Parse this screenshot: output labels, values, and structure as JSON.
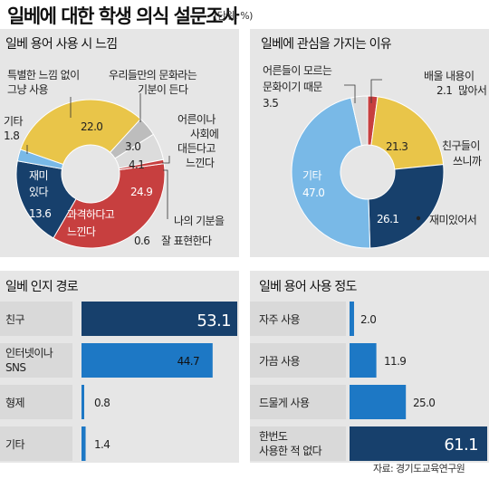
{
  "header": {
    "title": "일베에 대한 학생 의식 설문조사",
    "unit": "(단위: %)"
  },
  "source": "자료: 경기도교육연구원",
  "colors": {
    "red": "#c73f3f",
    "yellow": "#e9c549",
    "navy": "#17406c",
    "skyblue": "#79b9e7",
    "gray": "#bdbdbd",
    "lightgray": "#dcdcdc",
    "panel": "#e6e6e6",
    "barblue": "#1d78c5",
    "barlabel": "#d9d9d9"
  },
  "chart_data": [
    {
      "type": "pie",
      "title": "일베 용어 사용 시 느낌",
      "slices": [
        {
          "label": "과격하다고 느낀다",
          "value": 24.9
        },
        {
          "label": "재미 있다",
          "value": 13.6
        },
        {
          "label": "기타",
          "value": 1.8
        },
        {
          "label": "특별한 느낌 없이 그냥 사용",
          "value": 22.0
        },
        {
          "label": "우리들만의 문화라는 기분이 든다",
          "value": 3.0
        },
        {
          "label": "어른이나 사회에 대든다고 느낀다",
          "value": 4.1
        },
        {
          "label": "나의 기분을 잘 표현한다",
          "value": 0.6
        }
      ]
    },
    {
      "type": "pie",
      "title": "일베에 관심을 가지는 이유",
      "slices": [
        {
          "label": "배울 내용이 많아서",
          "value": 2.1
        },
        {
          "label": "친구들이 쓰니까",
          "value": 21.3
        },
        {
          "label": "재미있어서",
          "value": 26.1
        },
        {
          "label": "기타",
          "value": 47.0
        },
        {
          "label": "어른들이 모르는 문화이기 때문",
          "value": 3.5
        }
      ]
    },
    {
      "type": "bar",
      "title": "일베 인지 경로",
      "categories": [
        "친구",
        "인터넷이나 SNS",
        "형제",
        "기타"
      ],
      "values": [
        53.1,
        44.7,
        0.8,
        1.4
      ]
    },
    {
      "type": "bar",
      "title": "일베 용어 사용 정도",
      "categories": [
        "자주 사용",
        "가끔 사용",
        "드물게 사용",
        "한번도 사용한 적 없다"
      ],
      "values": [
        2.0,
        11.9,
        25.0,
        61.1
      ]
    }
  ],
  "donut1_labels": {
    "v0": "24.9",
    "v1": "13.6",
    "v2": "1.8",
    "v3": "22.0",
    "v4": "3.0",
    "v5": "4.1",
    "v6": "0.6",
    "l0a": "과격하다고",
    "l0b": "느낀다",
    "l1a": "재미",
    "l1b": "있다",
    "l2": "기타",
    "l3a": "특별한 느낌 없이",
    "l3b": "그냥 사용",
    "l4a": "우리들만의 문화라는",
    "l4b": "기분이 든다",
    "l5a": "어른이나",
    "l5b": "사회에",
    "l5c": "대든다고",
    "l5d": "느낀다",
    "l6a": "나의 기분을",
    "l6b": "잘 표현한다"
  },
  "donut2_labels": {
    "v0": "2.1",
    "v1": "21.3",
    "v2": "26.1",
    "v3": "47.0",
    "v4": "3.5",
    "l0a": "배울 내용이",
    "l0b": "많아서",
    "l1a": "친구들이",
    "l1b": "쓰니까",
    "l2": "재미있어서",
    "l3": "기타",
    "l4a": "어른들이 모르는",
    "l4b": "문화이기 때문"
  },
  "bars1_labels": {
    "c0": "친구",
    "c1a": "인터넷이나",
    "c1b": "SNS",
    "c2": "형제",
    "c3": "기타",
    "v0": "53.1",
    "v1": "44.7",
    "v2": "0.8",
    "v3": "1.4"
  },
  "bars2_labels": {
    "c0": "자주 사용",
    "c1": "가끔 사용",
    "c2": "드물게 사용",
    "c3a": "한번도",
    "c3b": "사용한 적 없다",
    "v0": "2.0",
    "v1": "11.9",
    "v2": "25.0",
    "v3": "61.1"
  }
}
